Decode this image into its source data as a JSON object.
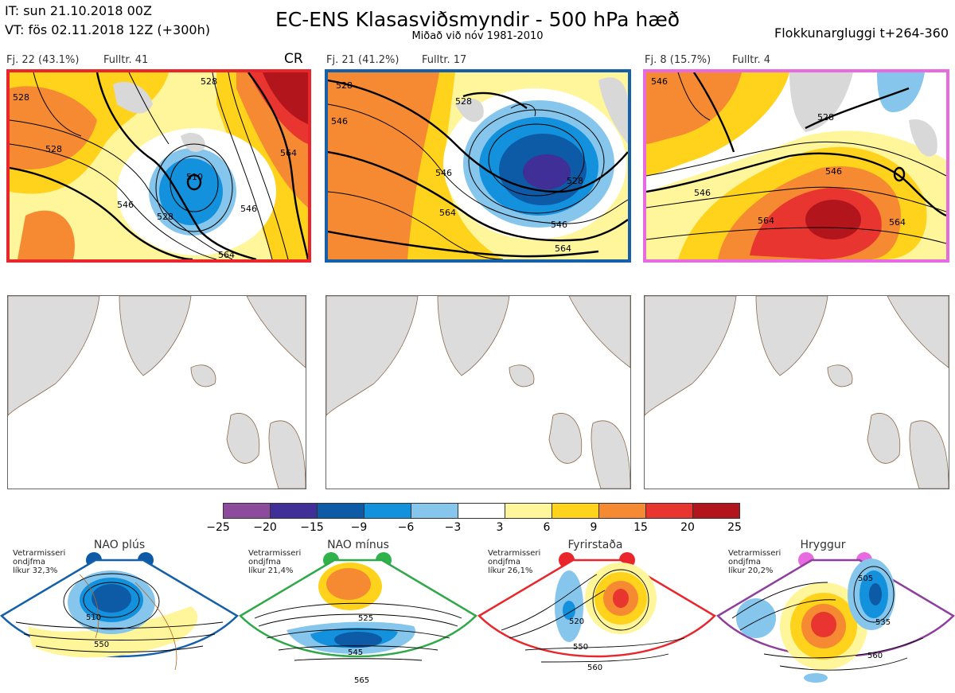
{
  "header": {
    "it_line": "IT: sun 21.10.2018 00Z",
    "vt_line": "VT: fös 02.11.2018 12Z  (+300h)",
    "title": "EC-ENS Klasasviðsmyndir - 500 hPa hæð",
    "subtitle": "Miðað við nóv 1981-2010",
    "window": "Flokkunargluggi t+264-360"
  },
  "clusters": [
    {
      "fj": "Fj. 22 (43.1%)",
      "fulltr": "Fulltr. 41",
      "tag": "CR",
      "border": "#e8262b",
      "contour_labels": [
        "528",
        "528",
        "528",
        "510",
        "528",
        "546",
        "546",
        "564",
        "564"
      ]
    },
    {
      "fj": "Fj. 21 (41.2%)",
      "fulltr": "Fulltr. 17",
      "tag": "",
      "border": "#1560a8",
      "contour_labels": [
        "528",
        "546",
        "528",
        "546",
        "528",
        "546",
        "564",
        "564"
      ]
    },
    {
      "fj": "Fj. 8 (15.7%)",
      "fulltr": "Fulltr. 4",
      "tag": "",
      "border": "#e86ae0",
      "contour_labels": [
        "546",
        "528",
        "546",
        "564",
        "546",
        "564"
      ]
    }
  ],
  "color_scale": {
    "colors": [
      "#8c4b9c",
      "#3f2f96",
      "#0d5aa6",
      "#1391dc",
      "#86c6ec",
      "#ffffff",
      "#fff59a",
      "#ffd21c",
      "#f58a33",
      "#e8352f",
      "#b3151c"
    ],
    "ticks": [
      "−25",
      "−20",
      "−15",
      "−9",
      "−6",
      "−3",
      "3",
      "6",
      "9",
      "15",
      "20",
      "25"
    ]
  },
  "regimes": [
    {
      "name": "NAO plús",
      "note": "Vetrarmisseri\nondjfma\nlíkur 32,3%",
      "dot_color": "#0d5aa6",
      "frame": "#1560a8",
      "labels": [
        "510",
        "550"
      ]
    },
    {
      "name": "NAO mínus",
      "note": "Vetrarmisseri\nondjfma\nlíkur 21,4%",
      "dot_color": "#2fb24a",
      "frame": "#2fa84a",
      "labels": [
        "525",
        "545",
        "565"
      ]
    },
    {
      "name": "Fyrirstaða",
      "note": "Vetrarmisseri\nondjfma\nlíkur 26,1%",
      "dot_color": "#e8262b",
      "frame": "#e8262b",
      "labels": [
        "520",
        "550",
        "560"
      ]
    },
    {
      "name": "Hryggur",
      "note": "Vetrarmisseri\nondjfma\nlíkur 20,2%",
      "dot_color": "#e86ae0",
      "frame": "#8e3f9c",
      "labels": [
        "505",
        "535",
        "560"
      ]
    }
  ]
}
